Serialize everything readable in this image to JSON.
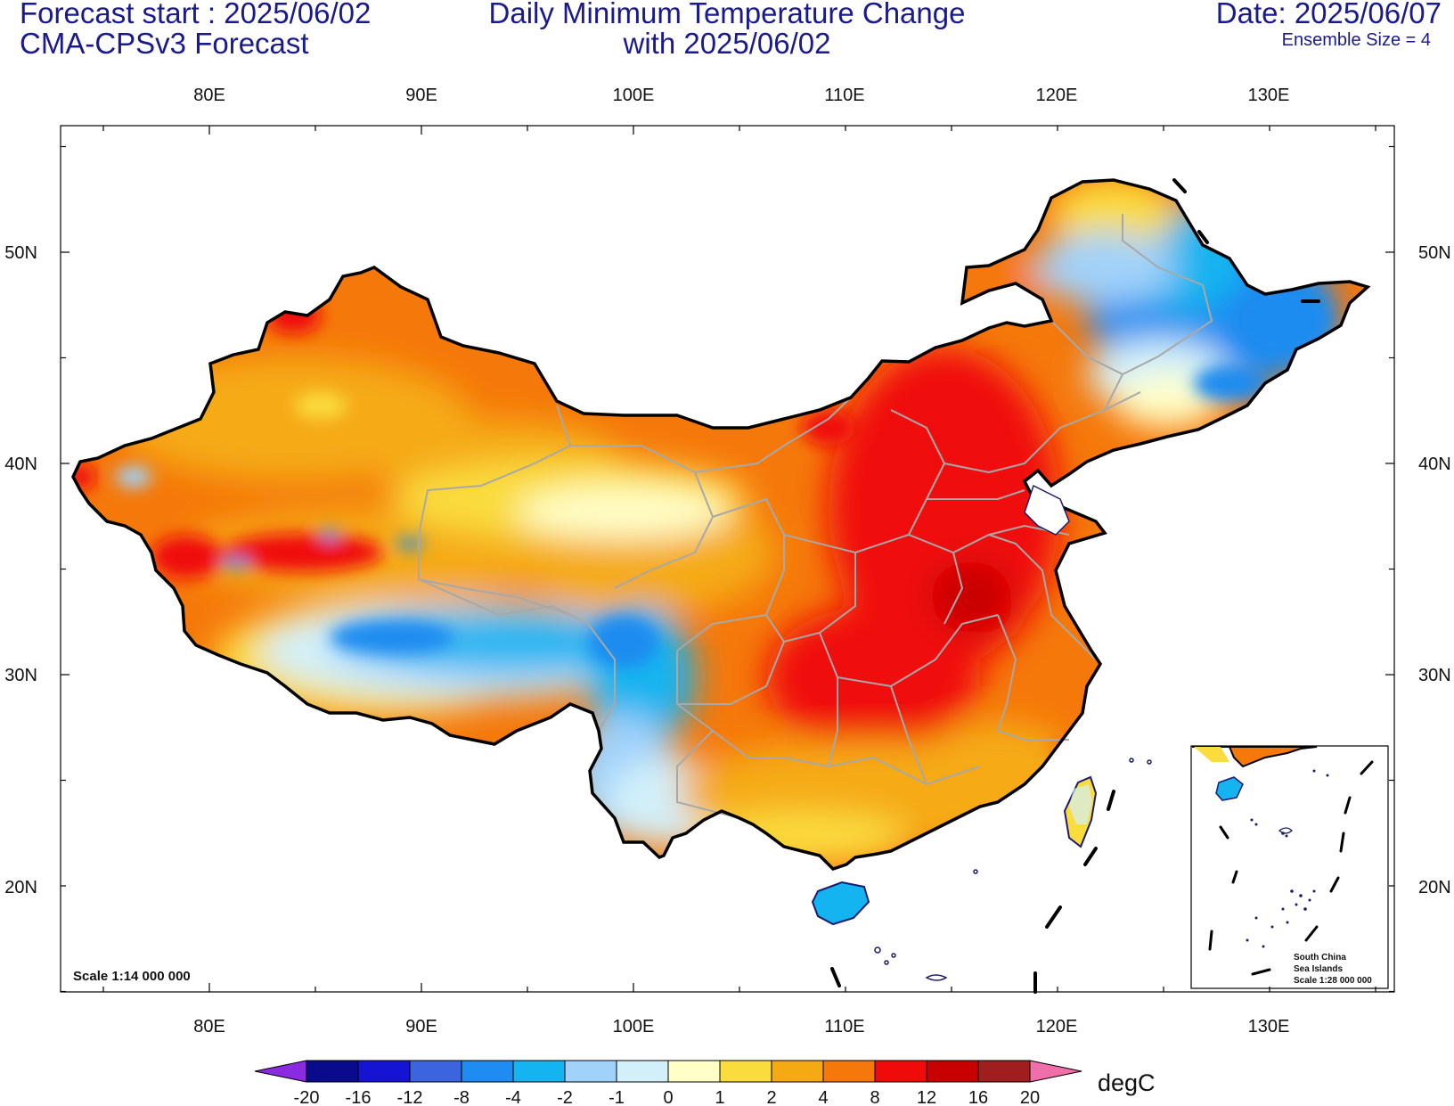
{
  "header": {
    "forecast_start": "Forecast start : 2025/06/02",
    "model": "CMA-CPSv3 Forecast",
    "title_line1": "Daily Minimum Temperature Change",
    "title_line2": "with 2025/06/02",
    "date": "Date: 2025/06/07",
    "ensemble": "Ensemble Size = 4"
  },
  "map": {
    "lon_ticks": [
      "80E",
      "90E",
      "100E",
      "110E",
      "120E",
      "130E"
    ],
    "lat_ticks": [
      "50N",
      "40N",
      "30N",
      "20N"
    ],
    "scale": "Scale 1:14 000 000",
    "inset": {
      "line1": "South China",
      "line2": "Sea Islands",
      "line3": "Scale 1:28 000 000"
    }
  },
  "colorbar": {
    "labels": [
      "-20",
      "-16",
      "-12",
      "-8",
      "-4",
      "-2",
      "-1",
      "0",
      "1",
      "2",
      "4",
      "8",
      "12",
      "16",
      "20"
    ],
    "colors": [
      "#0a0a8c",
      "#1414d2",
      "#3c64dc",
      "#1e8cf0",
      "#14b4f0",
      "#a0d2fa",
      "#d2f0fa",
      "#ffffc8",
      "#fadc3c",
      "#f5aa14",
      "#f5780a",
      "#f00a0a",
      "#c80000",
      "#a01e1e"
    ],
    "under_color": "#8a2be2",
    "over_color": "#f06eaa",
    "unit": "degC"
  },
  "colors": {
    "title_text": "#1a1a8c",
    "boundary": "#000000",
    "province_lines": "#a8a8a8",
    "coastline": "#1a1a6e"
  }
}
